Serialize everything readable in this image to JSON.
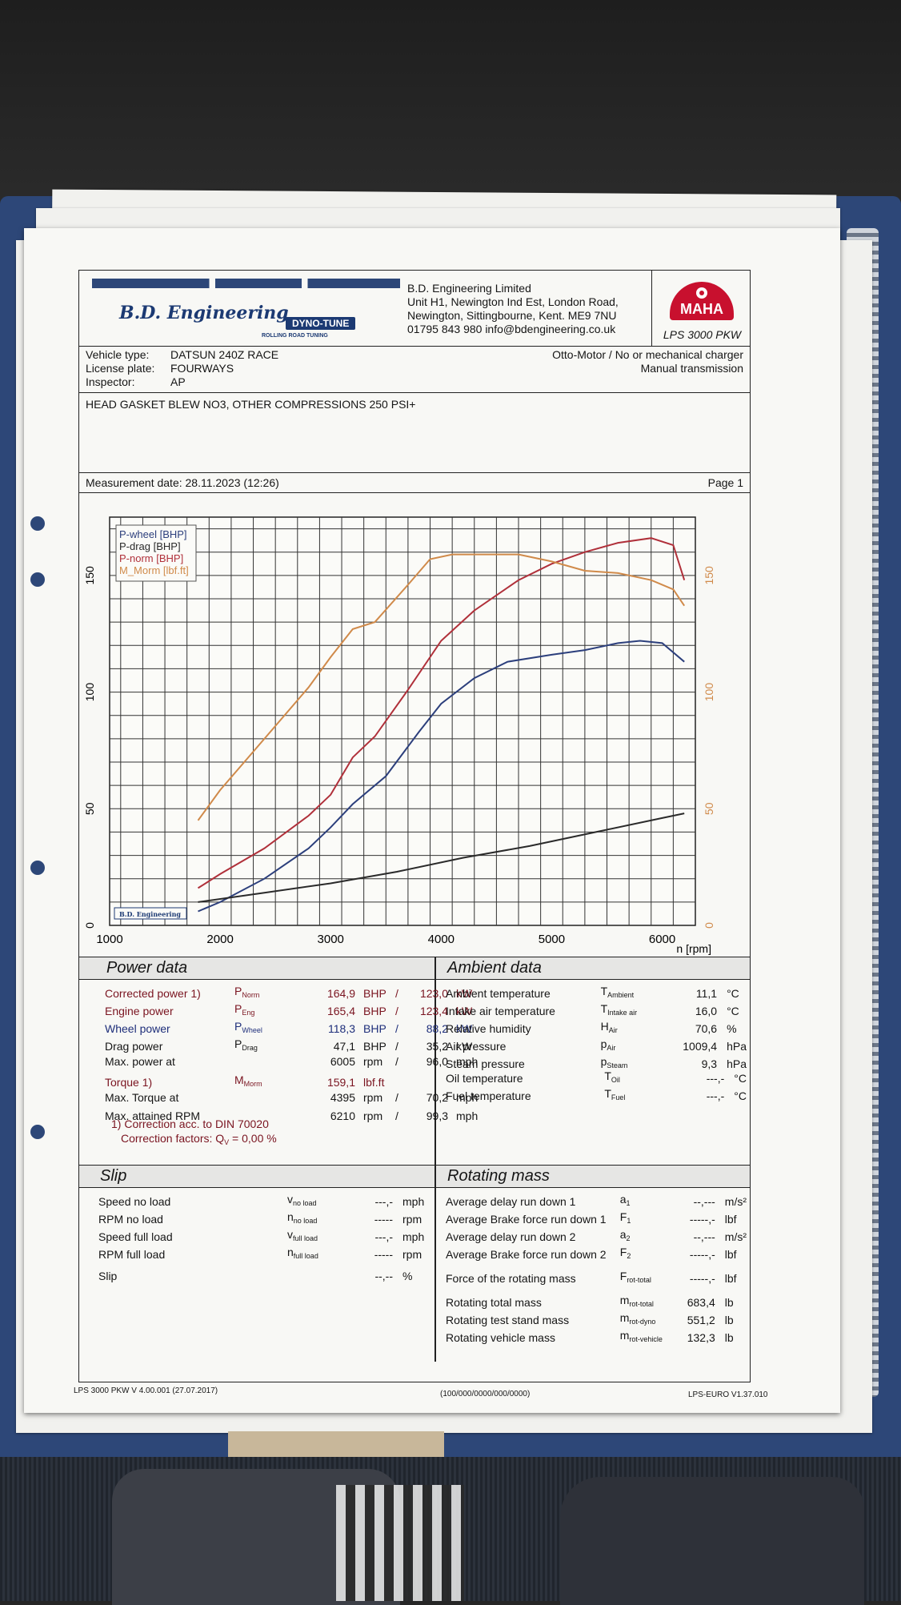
{
  "header": {
    "company_logo": "B.D. Engineering",
    "dyno_logo": "DYNO-TUNE",
    "dyno_tagline": "ROLLING ROAD TUNING",
    "address_lines": [
      "B.D. Engineering Limited",
      "Unit H1, Newington Ind Est, London Road,",
      "Newington, Sittingbourne, Kent.  ME9 7NU",
      "01795 843 980  info@bdengineering.co.uk"
    ],
    "maha_logo": "MAHA",
    "model": "LPS 3000 PKW"
  },
  "vehicle": {
    "type_label": "Vehicle type:",
    "type_value": "DATSUN 240Z RACE",
    "plate_label": "License plate:",
    "plate_value": "FOURWAYS",
    "inspector_label": "Inspector:",
    "inspector_value": "AP",
    "engine": "Otto-Motor / No or mechanical charger",
    "transmission": "Manual transmission"
  },
  "notes": "HEAD GASKET BLEW NO3, OTHER COMPRESSIONS 250 PSI+",
  "measurement": {
    "label": "Measurement date: 28.11.2023 (12:26)",
    "page": "Page 1"
  },
  "chart_data": {
    "type": "line",
    "xlabel": "n [rpm]",
    "x_ticks": [
      "1000",
      "2000",
      "3000",
      "4000",
      "5000",
      "6000"
    ],
    "y_ticks_left": [
      "0",
      "50",
      "100",
      "150"
    ],
    "y_ticks_right": [
      "0",
      "50",
      "100",
      "150"
    ],
    "xlim": [
      1000,
      6300
    ],
    "ylim": [
      0,
      175
    ],
    "legend_position": "top-left",
    "colors": {
      "wheel": "#2c3f7c",
      "drag": "#2a2a2a",
      "norm": "#b0303a",
      "torque": "#d08a4a"
    },
    "series": [
      {
        "name": "P-wheel [BHP]",
        "color": "#2c3f7c",
        "x": [
          1800,
          2000,
          2400,
          2800,
          3000,
          3200,
          3500,
          3800,
          4000,
          4300,
          4600,
          5000,
          5300,
          5600,
          5800,
          6000,
          6200
        ],
        "y": [
          6,
          10,
          20,
          33,
          42,
          52,
          64,
          83,
          95,
          106,
          113,
          116,
          118,
          121,
          122,
          121,
          113
        ]
      },
      {
        "name": "P-drag [BHP]",
        "color": "#2a2a2a",
        "x": [
          1800,
          2400,
          3000,
          3600,
          4200,
          4800,
          5400,
          6000,
          6200
        ],
        "y": [
          10,
          14,
          18,
          23,
          29,
          34,
          40,
          46,
          48
        ]
      },
      {
        "name": "P-norm [BHP]",
        "color": "#b0303a",
        "x": [
          1800,
          2000,
          2400,
          2800,
          3000,
          3200,
          3400,
          3700,
          4000,
          4300,
          4700,
          5000,
          5300,
          5600,
          5900,
          6100,
          6200
        ],
        "y": [
          16,
          22,
          33,
          47,
          56,
          72,
          81,
          101,
          122,
          135,
          148,
          155,
          160,
          164,
          166,
          163,
          148
        ]
      },
      {
        "name": "M_Morm [lbf.ft]",
        "color": "#d08a4a",
        "x": [
          1800,
          2000,
          2400,
          2800,
          3000,
          3200,
          3400,
          3700,
          3900,
          4100,
          4300,
          4700,
          5000,
          5300,
          5600,
          5900,
          6100,
          6200
        ],
        "y": [
          45,
          58,
          80,
          102,
          115,
          127,
          130,
          146,
          157,
          159,
          159,
          159,
          156,
          152,
          151,
          148,
          144,
          137
        ]
      }
    ]
  },
  "power": {
    "title": "Power data",
    "rows": [
      {
        "label": "Corrected power 1)",
        "sym": "P",
        "sub": "Norm",
        "v1": "164,9",
        "u1": "BHP",
        "v2": "123,0",
        "u2": "kW",
        "cls": "red"
      },
      {
        "label": "Engine power",
        "sym": "P",
        "sub": "Eng",
        "v1": "165,4",
        "u1": "BHP",
        "v2": "123,4",
        "u2": "kW",
        "cls": "red"
      },
      {
        "label": "Wheel power",
        "sym": "P",
        "sub": "Wheel",
        "v1": "118,3",
        "u1": "BHP",
        "v2": "88,2",
        "u2": "kW",
        "cls": "blue"
      },
      {
        "label": "Drag power",
        "sym": "P",
        "sub": "Drag",
        "v1": "47,1",
        "u1": "BHP",
        "v2": "35,2",
        "u2": "kW",
        "cls": ""
      },
      {
        "label": "Max. power at",
        "sym": "",
        "sub": "",
        "v1": "6005",
        "u1": "rpm",
        "v2": "96,0",
        "u2": "mph",
        "cls": ""
      }
    ],
    "torque": {
      "label": "Torque 1)",
      "sym": "M",
      "sub": "Morm",
      "v1": "159,1",
      "u1": "lbf.ft"
    },
    "max_torque": {
      "label": "Max. Torque at",
      "v1": "4395",
      "u1": "rpm",
      "v2": "70,2",
      "u2": "mph"
    },
    "max_rpm": {
      "label": "Max. attained RPM",
      "v1": "6210",
      "u1": "rpm",
      "v2": "99,3",
      "u2": "mph"
    },
    "correction": "1) Correction acc. to DIN 70020",
    "correction_factors_label": "Correction factors: Q",
    "correction_factors_sub": "V",
    "correction_factors_value": " =    0,00 %"
  },
  "ambient": {
    "title": "Ambient data",
    "rows": [
      {
        "label": "Ambient temperature",
        "sym": "T",
        "sub": "Ambient",
        "v": "11,1",
        "u": "°C"
      },
      {
        "label": "Intake air temperature",
        "sym": "T",
        "sub": "Intake air",
        "v": "16,0",
        "u": "°C"
      },
      {
        "label": "Relative humidity",
        "sym": "H",
        "sub": "Air",
        "v": "70,6",
        "u": "%"
      },
      {
        "label": "Air pressure",
        "sym": "p",
        "sub": "Air",
        "v": "1009,4",
        "u": "hPa"
      },
      {
        "label": "Steam pressure",
        "sym": "p",
        "sub": "Steam",
        "v": "9,3",
        "u": "hPa"
      }
    ],
    "rows2": [
      {
        "label": "Oil temperature",
        "sym": "T",
        "sub": "Oil",
        "v": "---,-",
        "u": "°C"
      },
      {
        "label": "Fuel temperature",
        "sym": "T",
        "sub": "Fuel",
        "v": "---,-",
        "u": "°C"
      }
    ]
  },
  "slip": {
    "title": "Slip",
    "rows": [
      {
        "label": "Speed no load",
        "sym": "v",
        "sub": "no load",
        "v": "---,-",
        "u": "mph"
      },
      {
        "label": "RPM no load",
        "sym": "n",
        "sub": "no load",
        "v": "-----",
        "u": "rpm"
      },
      {
        "label": "Speed full load",
        "sym": "v",
        "sub": "full load",
        "v": "---,-",
        "u": "mph"
      },
      {
        "label": "RPM full load",
        "sym": "n",
        "sub": "full load",
        "v": "-----",
        "u": "rpm"
      }
    ],
    "slip_row": {
      "label": "Slip",
      "v": "--,--",
      "u": "%"
    }
  },
  "rotating": {
    "title": "Rotating mass",
    "rows": [
      {
        "label": "Average delay run down 1",
        "sym": "a",
        "sub": "1",
        "v": "--,---",
        "u": "m/s²"
      },
      {
        "label": "Average Brake force run down 1",
        "sym": "F",
        "sub": "1",
        "v": "-----,-",
        "u": "lbf"
      },
      {
        "label": "Average delay run down 2",
        "sym": "a",
        "sub": "2",
        "v": "--,---",
        "u": "m/s²"
      },
      {
        "label": "Average Brake force run down 2",
        "sym": "F",
        "sub": "2",
        "v": "-----,-",
        "u": "lbf"
      }
    ],
    "force_row": {
      "label": "Force of the rotating mass",
      "sym": "F",
      "sub": "rot-total",
      "v": "-----,-",
      "u": "lbf"
    },
    "mass_rows": [
      {
        "label": "Rotating total mass",
        "sym": "m",
        "sub": "rot-total",
        "v": "683,4",
        "u": "lb"
      },
      {
        "label": "Rotating test stand mass",
        "sym": "m",
        "sub": "rot-dyno",
        "v": "551,2",
        "u": "lb"
      },
      {
        "label": "Rotating vehicle mass",
        "sym": "m",
        "sub": "rot-vehicle",
        "v": "132,3",
        "u": "lb"
      }
    ]
  },
  "footer": {
    "left": "LPS 3000 PKW V 4.00.001 (27.07.2017)",
    "center": "(100/000/0000/000/0000)",
    "right": "LPS-EURO V1.37.010"
  }
}
